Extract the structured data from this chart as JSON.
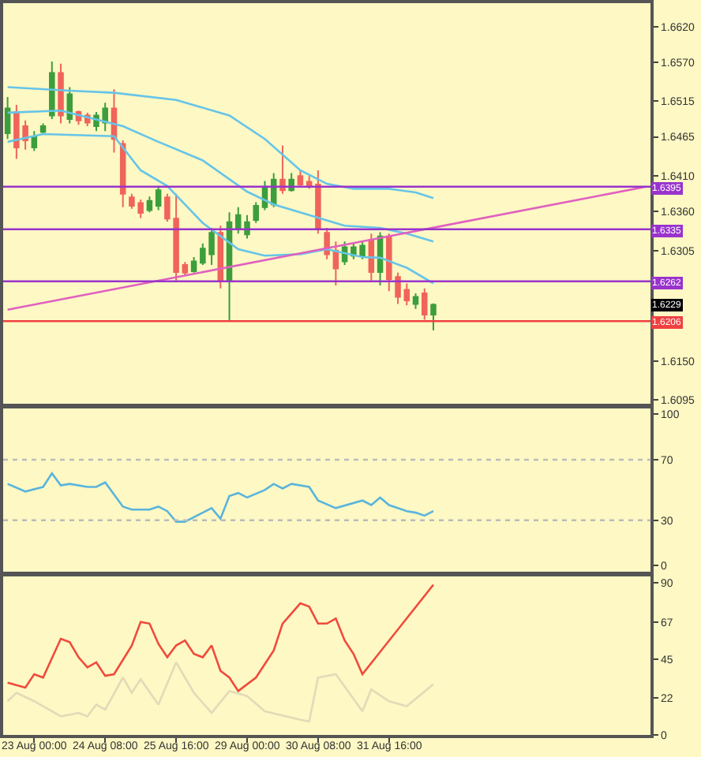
{
  "chart_data": [
    {
      "type": "candlestick",
      "categories": [
        null,
        null,
        null,
        null,
        null,
        null,
        null,
        null,
        null,
        null,
        null,
        null,
        null,
        null,
        null,
        null,
        null,
        null,
        null,
        null,
        null,
        null,
        null,
        null,
        null,
        null,
        null,
        null,
        null,
        null,
        null,
        null,
        null,
        null,
        null,
        null,
        null,
        null,
        null,
        null,
        null,
        null,
        null,
        null,
        null,
        null,
        null,
        null,
        null,
        null,
        null,
        null,
        null,
        null,
        null,
        null,
        null,
        null,
        null,
        null,
        null,
        null,
        null,
        null,
        null,
        null,
        null,
        null,
        null,
        null,
        null,
        null,
        null
      ],
      "ohlc": [
        [
          1.647,
          1.6521,
          1.6462,
          1.6505
        ],
        [
          1.65,
          1.651,
          1.6434,
          1.645
        ],
        [
          1.648,
          1.6488,
          1.6447,
          1.646
        ],
        [
          1.645,
          1.6473,
          1.6445,
          1.6465
        ],
        [
          1.6472,
          1.6484,
          1.6469,
          1.648
        ],
        [
          1.6495,
          1.6571,
          1.649,
          1.6555
        ],
        [
          1.6555,
          1.6568,
          1.6484,
          1.6495
        ],
        [
          1.649,
          1.6535,
          1.6484,
          1.6525
        ],
        [
          1.65,
          1.6502,
          1.6482,
          1.6488
        ],
        [
          1.6495,
          1.6499,
          1.648,
          1.6485
        ],
        [
          1.648,
          1.65,
          1.6473,
          1.6495
        ],
        [
          1.6485,
          1.6513,
          1.6473,
          1.6505
        ],
        [
          1.6505,
          1.6532,
          1.6443,
          1.6462
        ],
        [
          1.6455,
          1.646,
          1.6366,
          1.6385
        ],
        [
          1.638,
          1.6385,
          1.6364,
          1.6368
        ],
        [
          1.6372,
          1.6377,
          1.6351,
          1.6358
        ],
        [
          1.6362,
          1.6381,
          1.6359,
          1.6375
        ],
        [
          1.6368,
          1.6396,
          1.6362,
          1.639
        ],
        [
          1.638,
          1.6385,
          1.6346,
          1.635
        ],
        [
          1.635,
          1.6385,
          1.6263,
          1.6275
        ],
        [
          1.6285,
          1.6289,
          1.627,
          1.6274
        ],
        [
          1.6276,
          1.6296,
          1.6274,
          1.629
        ],
        [
          1.6288,
          1.6315,
          1.6285,
          1.6308
        ],
        [
          1.63,
          1.6337,
          1.6285,
          1.633
        ],
        [
          1.633,
          1.634,
          1.6252,
          1.6262
        ],
        [
          1.6262,
          1.6359,
          1.6206,
          1.6345
        ],
        [
          1.6335,
          1.6366,
          1.6329,
          1.6355
        ],
        [
          1.6328,
          1.6355,
          1.6322,
          1.6345
        ],
        [
          1.6348,
          1.6373,
          1.6344,
          1.6368
        ],
        [
          1.6366,
          1.6403,
          1.6362,
          1.6395
        ],
        [
          1.637,
          1.6414,
          1.6366,
          1.6405
        ],
        [
          1.6405,
          1.6453,
          1.6385,
          1.639
        ],
        [
          1.639,
          1.6414,
          1.6388,
          1.6405
        ],
        [
          1.641,
          1.6419,
          1.6396,
          1.6398
        ],
        [
          1.6402,
          1.641,
          1.6392,
          1.6395
        ],
        [
          1.6398,
          1.6418,
          1.6329,
          1.6335
        ],
        [
          1.633,
          1.6337,
          1.6293,
          1.63
        ],
        [
          1.6305,
          1.6318,
          1.6256,
          1.628
        ],
        [
          1.629,
          1.6318,
          1.6285,
          1.631
        ],
        [
          1.6298,
          1.6315,
          1.6293,
          1.631
        ],
        [
          1.6298,
          1.6318,
          1.6293,
          1.6312
        ],
        [
          1.632,
          1.6329,
          1.6263,
          1.6275
        ],
        [
          1.6275,
          1.6331,
          1.6256,
          1.6325
        ],
        [
          1.6325,
          1.6329,
          1.6248,
          1.6265
        ],
        [
          1.6268,
          1.6274,
          1.623,
          1.624
        ],
        [
          1.625,
          1.6259,
          1.6228,
          1.6235
        ],
        [
          1.623,
          1.6245,
          1.6223,
          1.624
        ],
        [
          1.6245,
          1.6252,
          1.6208,
          1.6215
        ],
        [
          1.6215,
          1.6231,
          1.6193,
          1.6229
        ],
        null,
        null,
        null,
        null,
        null,
        null,
        null,
        null,
        null,
        null,
        null,
        null,
        null,
        null,
        null,
        null,
        null,
        null,
        null,
        null,
        null,
        null,
        null,
        null
      ],
      "colors": [
        "#3c9e3c",
        "#f0645a",
        "#f0645a",
        "#3c9e3c",
        "#3c9e3c",
        "#3c9e3c",
        "#f0645a",
        "#3c9e3c",
        "#f0645a",
        "#f0645a",
        "#3c9e3c",
        "#3c9e3c",
        "#f0645a",
        "#f0645a",
        "#f0645a",
        "#f0645a",
        "#3c9e3c",
        "#3c9e3c",
        "#f0645a",
        "#f0645a",
        "#f0645a",
        "#3c9e3c",
        "#3c9e3c",
        "#3c9e3c",
        "#f0645a",
        "#3c9e3c",
        "#3c9e3c",
        "#3c9e3c",
        "#3c9e3c",
        "#3c9e3c",
        "#3c9e3c",
        "#f0645a",
        "#3c9e3c",
        "#f0645a",
        "#f0645a",
        "#f0645a",
        "#f0645a",
        "#f0645a",
        "#3c9e3c",
        "#3c9e3c",
        "#3c9e3c",
        "#f0645a",
        "#3c9e3c",
        "#f0645a",
        "#f0645a",
        "#f0645a",
        "#3c9e3c",
        "#f0645a",
        "#3c9e3c",
        null,
        null,
        null,
        null,
        null,
        null,
        null,
        null,
        null,
        null,
        null,
        null,
        null,
        null,
        null,
        null,
        null,
        null,
        null,
        null,
        null,
        null,
        null,
        null
      ],
      "series": [
        {
          "type": "line",
          "color": "#66c4e8",
          "values": [
            1.6535,
            null,
            null,
            null,
            null,
            null,
            null,
            1.653,
            null,
            null,
            null,
            null,
            1.6527,
            null,
            null,
            null,
            null,
            null,
            null,
            1.6517,
            null,
            null,
            null,
            null,
            null,
            1.6495,
            null,
            null,
            null,
            1.6462,
            null,
            null,
            null,
            1.6418,
            null,
            null,
            1.6399,
            null,
            null,
            1.6392,
            null,
            null,
            null,
            1.6392,
            null,
            null,
            1.6387,
            null,
            1.6379,
            null,
            null,
            null,
            null,
            null,
            null,
            null,
            null,
            null,
            null,
            null,
            null,
            null,
            null,
            null,
            null,
            null,
            null,
            null,
            null,
            null,
            null,
            null,
            null
          ]
        },
        {
          "type": "line",
          "color": "#66c4e8",
          "values": [
            1.6499,
            null,
            null,
            null,
            null,
            null,
            1.6502,
            null,
            null,
            null,
            null,
            null,
            null,
            1.648,
            null,
            null,
            null,
            1.6458,
            null,
            null,
            null,
            null,
            1.6432,
            null,
            null,
            null,
            null,
            1.6388,
            null,
            null,
            1.637,
            null,
            null,
            null,
            1.6355,
            null,
            null,
            null,
            1.634,
            null,
            null,
            null,
            1.6337,
            null,
            null,
            1.6329,
            null,
            null,
            1.6318,
            null,
            null,
            null,
            null,
            null,
            null,
            null,
            null,
            null,
            null,
            null,
            null,
            null,
            null,
            null,
            null,
            null,
            null,
            null,
            null,
            null,
            null,
            null,
            null
          ]
        },
        {
          "type": "line",
          "color": "#66c4e8",
          "values": [
            1.6458,
            null,
            null,
            null,
            1.6469,
            null,
            null,
            null,
            null,
            null,
            null,
            null,
            1.6466,
            null,
            null,
            1.6418,
            null,
            null,
            1.6396,
            null,
            null,
            null,
            1.6344,
            null,
            null,
            null,
            1.6307,
            null,
            null,
            1.6298,
            null,
            null,
            null,
            1.63,
            null,
            null,
            1.6307,
            null,
            null,
            null,
            1.6296,
            null,
            1.6295,
            null,
            null,
            1.6281,
            null,
            null,
            1.6259,
            null,
            null,
            null,
            null,
            null,
            null,
            null,
            null,
            null,
            null,
            null,
            null,
            null,
            null,
            null,
            null,
            null,
            null,
            null,
            null,
            null,
            null,
            null,
            null
          ]
        },
        {
          "type": "line",
          "color": "#e060c0",
          "values": [
            1.6222,
            null,
            null,
            null,
            null,
            null,
            null,
            null,
            null,
            null,
            null,
            null,
            null,
            null,
            null,
            null,
            null,
            null,
            null,
            null,
            null,
            null,
            null,
            null,
            null,
            null,
            null,
            null,
            null,
            null,
            null,
            null,
            null,
            null,
            null,
            null,
            null,
            null,
            null,
            null,
            null,
            null,
            null,
            null,
            null,
            null,
            null,
            null,
            null,
            null,
            null,
            null,
            null,
            null,
            null,
            null,
            null,
            null,
            null,
            null,
            null,
            null,
            null,
            null,
            null,
            null,
            null,
            null,
            null,
            null,
            null,
            null,
            1.6395
          ]
        }
      ],
      "ref_lines": [
        {
          "axis": "y",
          "value": 1.6395,
          "label": "1.6395",
          "color": "#9933cc"
        },
        {
          "axis": "y",
          "value": 1.6335,
          "label": "1.6335",
          "color": "#9933cc"
        },
        {
          "axis": "y",
          "value": 1.6262,
          "label": "1.6262",
          "color": "#9933cc"
        },
        {
          "axis": "y",
          "value": 1.6206,
          "label": "1.6206",
          "color": "#f04040"
        }
      ],
      "annotations": [
        {
          "text": "1.6229",
          "y": 1.6229
        }
      ],
      "ylim": [
        1.609,
        1.6653
      ],
      "yticks": [
        {
          "value": 1.662,
          "label": "1.6620"
        },
        {
          "value": 1.657,
          "label": "1.6570"
        },
        {
          "value": 1.6515,
          "label": "1.6515"
        },
        {
          "value": 1.6465,
          "label": "1.6465"
        },
        {
          "value": 1.641,
          "label": "1.6410"
        },
        {
          "value": 1.636,
          "label": "1.6360"
        },
        {
          "value": 1.6305,
          "label": "1.6305"
        },
        {
          "value": 1.615,
          "label": "1.6150"
        },
        {
          "value": 1.6095,
          "label": "1.6095"
        }
      ],
      "tick_labels": "y"
    },
    {
      "type": "line",
      "categories": [
        null,
        null,
        null,
        null,
        null,
        null,
        null,
        null,
        null,
        null,
        null,
        null,
        null,
        null,
        null,
        null,
        null,
        null,
        null,
        null,
        null,
        null,
        null,
        null,
        null,
        null,
        null,
        null,
        null,
        null,
        null,
        null,
        null,
        null,
        null,
        null,
        null,
        null,
        null,
        null,
        null,
        null,
        null,
        null,
        null,
        null,
        null,
        null,
        null,
        null,
        null,
        null,
        null,
        null,
        null,
        null,
        null,
        null,
        null,
        null,
        null,
        null,
        null,
        null,
        null,
        null,
        null,
        null,
        null,
        null,
        null,
        null,
        null
      ],
      "series": [
        {
          "color": "#5ab4dc",
          "values": [
            54,
            null,
            49,
            null,
            52,
            61,
            53,
            54,
            null,
            52,
            52,
            55,
            null,
            39,
            37,
            null,
            37,
            39,
            36,
            29,
            29,
            null,
            35,
            38,
            31,
            46,
            48,
            45,
            null,
            50,
            54,
            51,
            54,
            null,
            52,
            43,
            null,
            38,
            null,
            null,
            43,
            40,
            45,
            40,
            null,
            36,
            35,
            33,
            36,
            null,
            null,
            null,
            null,
            null,
            null,
            null,
            null,
            null,
            null,
            null,
            null,
            null,
            null,
            null,
            null,
            null,
            null,
            null,
            null,
            null,
            null,
            null,
            null
          ]
        }
      ],
      "ref_lines": [
        {
          "axis": "y",
          "value": 70,
          "color": "#bbbbbb",
          "line_style": "dotted"
        },
        {
          "axis": "y",
          "value": 30,
          "color": "#bbbbbb",
          "line_style": "dotted"
        }
      ],
      "ylim": [
        -4,
        104
      ],
      "yticks": [
        0,
        30,
        70,
        100
      ],
      "tick_labels": "y"
    },
    {
      "type": "line",
      "categories": [
        null,
        null,
        null,
        "23 Aug 00:00",
        null,
        null,
        null,
        null,
        null,
        null,
        null,
        "24 Aug 08:00",
        null,
        null,
        null,
        null,
        null,
        null,
        null,
        "25 Aug 16:00",
        null,
        null,
        null,
        null,
        null,
        null,
        null,
        "29 Aug 00:00",
        null,
        null,
        null,
        null,
        null,
        null,
        null,
        "30 Aug 08:00",
        null,
        null,
        null,
        null,
        null,
        null,
        null,
        "31 Aug 16:00",
        null,
        null,
        null,
        null,
        null,
        null,
        null,
        null,
        null,
        null,
        null,
        null,
        null,
        null,
        null,
        null,
        null,
        null,
        null,
        null,
        null,
        null,
        null,
        null,
        null,
        null,
        null,
        null,
        null
      ],
      "series": [
        {
          "color": "#f04a3c",
          "values": [
            31,
            null,
            28,
            36,
            34,
            null,
            57,
            55,
            46,
            40,
            43,
            35,
            36,
            null,
            53,
            67,
            66,
            54,
            46,
            53,
            56,
            48,
            46,
            53,
            38,
            34,
            26,
            null,
            34,
            null,
            50,
            66,
            null,
            78,
            76,
            66,
            66,
            69,
            56,
            48,
            36,
            null,
            null,
            null,
            null,
            null,
            null,
            null,
            89,
            null,
            null,
            null,
            null,
            null,
            null,
            null,
            null,
            null,
            null,
            null,
            null,
            null,
            null,
            null,
            null,
            null,
            null,
            null,
            null,
            null,
            null,
            null,
            null
          ]
        },
        {
          "color": "#e2dab8",
          "values": [
            20,
            25,
            null,
            20,
            null,
            null,
            11,
            null,
            13,
            11,
            18,
            15,
            null,
            34,
            25,
            33,
            null,
            18,
            null,
            43,
            null,
            25,
            null,
            13,
            null,
            26,
            null,
            23,
            null,
            14,
            null,
            null,
            null,
            9,
            8,
            34,
            null,
            36,
            null,
            null,
            14,
            27,
            null,
            20,
            null,
            17,
            null,
            null,
            30,
            null,
            null,
            null,
            null,
            null,
            null,
            null,
            null,
            null,
            null,
            null,
            null,
            null,
            null,
            null,
            null,
            null,
            null,
            null,
            null,
            null,
            null,
            null,
            null
          ]
        }
      ],
      "ylim": [
        0,
        94
      ],
      "yticks": [
        0,
        22,
        45,
        67,
        90
      ]
    }
  ]
}
